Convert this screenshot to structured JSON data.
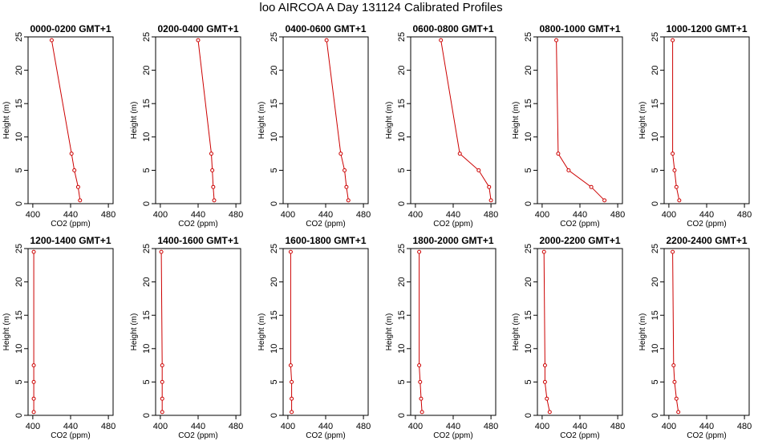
{
  "title": "loo AIRCOA A  Day 131124  Calibrated Profiles",
  "chart_data": [
    {
      "type": "line",
      "title": "0000-0200 GMT+1",
      "xlabel": "CO2 (ppm)",
      "ylabel": "Height (m)",
      "xlim": [
        395,
        485
      ],
      "ylim": [
        0,
        25
      ],
      "xticks": [
        400,
        440,
        480
      ],
      "yticks": [
        0,
        5,
        10,
        15,
        20,
        25
      ],
      "series": [
        {
          "x": [
            420,
            441,
            444,
            448,
            450
          ],
          "y": [
            24.5,
            7.5,
            5,
            2.5,
            0.5
          ]
        }
      ]
    },
    {
      "type": "line",
      "title": "0200-0400 GMT+1",
      "xlabel": "CO2 (ppm)",
      "ylabel": "Height (m)",
      "xlim": [
        395,
        485
      ],
      "ylim": [
        0,
        25
      ],
      "xticks": [
        400,
        440,
        480
      ],
      "yticks": [
        0,
        5,
        10,
        15,
        20,
        25
      ],
      "series": [
        {
          "x": [
            440,
            454,
            455,
            456,
            457
          ],
          "y": [
            24.5,
            7.5,
            5,
            2.5,
            0.5
          ]
        }
      ]
    },
    {
      "type": "line",
      "title": "0400-0600 GMT+1",
      "xlabel": "CO2 (ppm)",
      "ylabel": "Height (m)",
      "xlim": [
        395,
        485
      ],
      "ylim": [
        0,
        25
      ],
      "xticks": [
        400,
        440,
        480
      ],
      "yticks": [
        0,
        5,
        10,
        15,
        20,
        25
      ],
      "series": [
        {
          "x": [
            441,
            456,
            460,
            462,
            464
          ],
          "y": [
            24.5,
            7.5,
            5,
            2.5,
            0.5
          ]
        }
      ]
    },
    {
      "type": "line",
      "title": "0600-0800 GMT+1",
      "xlabel": "CO2 (ppm)",
      "ylabel": "Height (m)",
      "xlim": [
        395,
        485
      ],
      "ylim": [
        0,
        25
      ],
      "xticks": [
        400,
        440,
        480
      ],
      "yticks": [
        0,
        5,
        10,
        15,
        20,
        25
      ],
      "series": [
        {
          "x": [
            427,
            447,
            467,
            478,
            480
          ],
          "y": [
            24.5,
            7.5,
            5,
            2.5,
            0.5
          ]
        }
      ]
    },
    {
      "type": "line",
      "title": "0800-1000 GMT+1",
      "xlabel": "CO2 (ppm)",
      "ylabel": "Height (m)",
      "xlim": [
        395,
        485
      ],
      "ylim": [
        0,
        25
      ],
      "xticks": [
        400,
        440,
        480
      ],
      "yticks": [
        0,
        5,
        10,
        15,
        20,
        25
      ],
      "series": [
        {
          "x": [
            415,
            417,
            428,
            452,
            466
          ],
          "y": [
            24.5,
            7.5,
            5,
            2.5,
            0.5
          ]
        }
      ]
    },
    {
      "type": "line",
      "title": "1000-1200 GMT+1",
      "xlabel": "CO2 (ppm)",
      "ylabel": "Height (m)",
      "xlim": [
        395,
        485
      ],
      "ylim": [
        0,
        25
      ],
      "xticks": [
        400,
        440,
        480
      ],
      "yticks": [
        0,
        5,
        10,
        15,
        20,
        25
      ],
      "series": [
        {
          "x": [
            404,
            404,
            406,
            408,
            411
          ],
          "y": [
            24.5,
            7.5,
            5,
            2.5,
            0.5
          ]
        }
      ]
    },
    {
      "type": "line",
      "title": "1200-1400 GMT+1",
      "xlabel": "CO2 (ppm)",
      "ylabel": "Height (m)",
      "xlim": [
        395,
        485
      ],
      "ylim": [
        0,
        25
      ],
      "xticks": [
        400,
        440,
        480
      ],
      "yticks": [
        0,
        5,
        10,
        15,
        20,
        25
      ],
      "series": [
        {
          "x": [
            401,
            401,
            401,
            401,
            401
          ],
          "y": [
            24.5,
            7.5,
            5,
            2.5,
            0.5
          ]
        }
      ]
    },
    {
      "type": "line",
      "title": "1400-1600 GMT+1",
      "xlabel": "CO2 (ppm)",
      "ylabel": "Height (m)",
      "xlim": [
        395,
        485
      ],
      "ylim": [
        0,
        25
      ],
      "xticks": [
        400,
        440,
        480
      ],
      "yticks": [
        0,
        5,
        10,
        15,
        20,
        25
      ],
      "series": [
        {
          "x": [
            401,
            402,
            402,
            402,
            402
          ],
          "y": [
            24.5,
            7.5,
            5,
            2.5,
            0.5
          ]
        }
      ]
    },
    {
      "type": "line",
      "title": "1600-1800 GMT+1",
      "xlabel": "CO2 (ppm)",
      "ylabel": "Height (m)",
      "xlim": [
        395,
        485
      ],
      "ylim": [
        0,
        25
      ],
      "xticks": [
        400,
        440,
        480
      ],
      "yticks": [
        0,
        5,
        10,
        15,
        20,
        25
      ],
      "series": [
        {
          "x": [
            403,
            403,
            404,
            404,
            404
          ],
          "y": [
            24.5,
            7.5,
            5,
            2.5,
            0.5
          ]
        }
      ]
    },
    {
      "type": "line",
      "title": "1800-2000 GMT+1",
      "xlabel": "CO2 (ppm)",
      "ylabel": "Height (m)",
      "xlim": [
        395,
        485
      ],
      "ylim": [
        0,
        25
      ],
      "xticks": [
        400,
        440,
        480
      ],
      "yticks": [
        0,
        5,
        10,
        15,
        20,
        25
      ],
      "series": [
        {
          "x": [
            404,
            404,
            405,
            406,
            407
          ],
          "y": [
            24.5,
            7.5,
            5,
            2.5,
            0.5
          ]
        }
      ]
    },
    {
      "type": "line",
      "title": "2000-2200 GMT+1",
      "xlabel": "CO2 (ppm)",
      "ylabel": "Height (m)",
      "xlim": [
        395,
        485
      ],
      "ylim": [
        0,
        25
      ],
      "xticks": [
        400,
        440,
        480
      ],
      "yticks": [
        0,
        5,
        10,
        15,
        20,
        25
      ],
      "series": [
        {
          "x": [
            402,
            403,
            403,
            405,
            408
          ],
          "y": [
            24.5,
            7.5,
            5,
            2.5,
            0.5
          ]
        }
      ]
    },
    {
      "type": "line",
      "title": "2200-2400 GMT+1",
      "xlabel": "CO2 (ppm)",
      "ylabel": "Height (m)",
      "xlim": [
        395,
        485
      ],
      "ylim": [
        0,
        25
      ],
      "xticks": [
        400,
        440,
        480
      ],
      "yticks": [
        0,
        5,
        10,
        15,
        20,
        25
      ],
      "series": [
        {
          "x": [
            404,
            405,
            406,
            408,
            410
          ],
          "y": [
            24.5,
            7.5,
            5,
            2.5,
            0.5
          ]
        }
      ]
    }
  ],
  "colors": {
    "line": "#cc0000",
    "point": "#cc0000",
    "axis": "#000000"
  }
}
